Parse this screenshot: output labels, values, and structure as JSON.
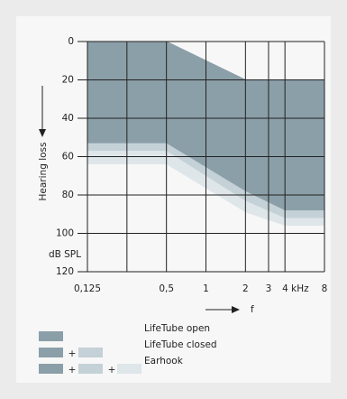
{
  "chart_data": {
    "type": "range_area",
    "y_axis_label": "Hearing loss",
    "y_unit": "dB SPL",
    "x_axis_label": "f",
    "x": [
      0.125,
      0.5,
      2,
      4,
      8
    ],
    "upper": [
      0,
      0,
      20,
      20,
      20
    ],
    "series": [
      {
        "name": "LifeTube open",
        "color": "#8b9fa8",
        "values": [
          53,
          53,
          78,
          88,
          88
        ]
      },
      {
        "name": "LifeTube closed",
        "color": "#c4d1d7",
        "values": [
          57,
          57,
          83,
          92,
          92
        ]
      },
      {
        "name": "Earhook",
        "color": "#dee6ea",
        "values": [
          64,
          64,
          89,
          96,
          96
        ]
      }
    ],
    "legend_joiner": "+",
    "xlim": [
      0.125,
      8
    ],
    "log_x": true,
    "xticks": [
      {
        "value": 0.125,
        "label": "0,125"
      },
      {
        "value": 0.25,
        "label": null
      },
      {
        "value": 0.5,
        "label": "0,5"
      },
      1,
      2,
      3,
      {
        "value": 4,
        "label": "4 kHz"
      },
      8
    ],
    "ylim": [
      0,
      120
    ],
    "y_inverted": true,
    "yticks": [
      0,
      20,
      40,
      60,
      80,
      100,
      120
    ],
    "grid": true
  }
}
